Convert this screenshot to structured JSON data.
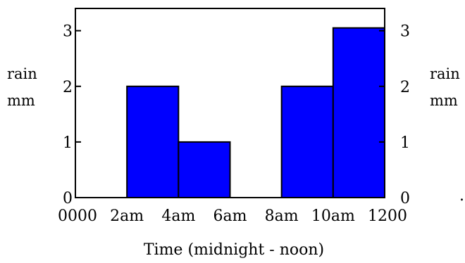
{
  "chart_data": {
    "type": "bar",
    "title": "",
    "xlabel": "Time (midnight - noon)",
    "ylabel_left": [
      "rain",
      "mm"
    ],
    "ylabel_right": [
      "rain",
      "mm"
    ],
    "x_tick_labels": [
      "0000",
      "2am",
      "4am",
      "6am",
      "8am",
      "10am",
      "1200"
    ],
    "y_ticks": [
      0,
      1,
      2,
      3
    ],
    "ylim": [
      0,
      3.4
    ],
    "xlim": [
      0,
      12
    ],
    "bars": [
      {
        "start": 2,
        "end": 4,
        "value": 2.0
      },
      {
        "start": 4,
        "end": 6,
        "value": 1.0
      },
      {
        "start": 8,
        "end": 10,
        "value": 2.0
      },
      {
        "start": 10,
        "end": 12,
        "value": 3.05
      }
    ],
    "bar_color": "#0000ff",
    "grid": false,
    "legend": "none"
  },
  "stray_mark": "."
}
